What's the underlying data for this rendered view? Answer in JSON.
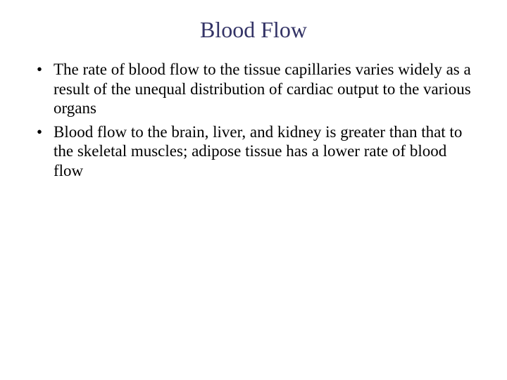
{
  "slide": {
    "title": "Blood Flow",
    "title_color": "#333366",
    "title_fontsize": 32,
    "background_color": "#ffffff",
    "body_color": "#000000",
    "body_fontsize": 23,
    "font_family": "Times New Roman",
    "bullets": [
      {
        "text": "The rate of blood flow to the tissue capillaries varies widely as a result of the unequal distribution of cardiac output to the various organs"
      },
      {
        "text": "Blood flow to the brain, liver, and kidney is greater than that to the skeletal muscles; adipose tissue has a lower rate of blood flow"
      }
    ]
  }
}
